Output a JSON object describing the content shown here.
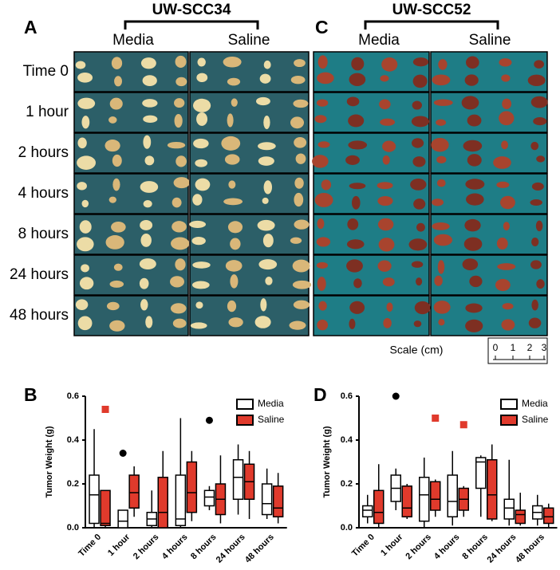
{
  "figure": {
    "panels": [
      {
        "label": "A",
        "cell_line": "UW-SCC34",
        "columns": [
          "Media",
          "Saline"
        ]
      },
      {
        "label": "C",
        "cell_line": "UW-SCC52",
        "columns": [
          "Media",
          "Saline"
        ]
      }
    ],
    "rows": [
      "Time 0",
      "1 hour",
      "2 hours",
      "4 hours",
      "8 hours",
      "24 hours",
      "48 hours"
    ],
    "scale": {
      "label": "Scale (cm)",
      "ticks": [
        0,
        1,
        2,
        3
      ]
    }
  },
  "chart_data": [
    {
      "type": "box",
      "label": "B",
      "ylabel": "Tumor Weight (g)",
      "categories": [
        "Time 0",
        "1 hour",
        "2 hours",
        "4 hours",
        "8 hours",
        "24 hours",
        "48 hours"
      ],
      "ylim": [
        0,
        0.6
      ],
      "yticks": [
        {
          "value": 0,
          "label": "0.0"
        },
        0.2,
        0.4,
        0.6
      ],
      "legend": "upper right",
      "series": [
        {
          "name": "Media",
          "color": "#ffffff",
          "outlier_color": "#000000",
          "marker": "circle",
          "min": [
            0,
            0,
            0,
            0,
            0.08,
            0.06,
            0.04
          ],
          "q1": [
            0.02,
            0,
            0.01,
            0.01,
            0.1,
            0.13,
            0.06
          ],
          "median": [
            0.15,
            0.03,
            0.04,
            0.04,
            0.14,
            0.23,
            0.11
          ],
          "q3": [
            0.24,
            0.08,
            0.07,
            0.24,
            0.17,
            0.31,
            0.2
          ],
          "max": [
            0.45,
            0.08,
            0.17,
            0.5,
            0.19,
            0.38,
            0.27
          ],
          "outliers": [
            null,
            0.34,
            null,
            null,
            0.49,
            null,
            null
          ]
        },
        {
          "name": "Saline",
          "color": "#e03a2c",
          "outlier_color": "#e03a2c",
          "marker": "square",
          "min": [
            0,
            0.05,
            0,
            0.03,
            0.02,
            0.04,
            0.02
          ],
          "q1": [
            0.01,
            0.09,
            0,
            0.07,
            0.06,
            0.13,
            0.05
          ],
          "median": [
            0.02,
            0.16,
            0.07,
            0.16,
            0.13,
            0.21,
            0.09
          ],
          "q3": [
            0.17,
            0.24,
            0.23,
            0.3,
            0.2,
            0.29,
            0.19
          ],
          "max": [
            0.17,
            0.28,
            0.35,
            0.35,
            0.33,
            0.35,
            0.25
          ],
          "outliers": [
            0.54,
            null,
            null,
            null,
            null,
            null,
            null
          ]
        }
      ]
    },
    {
      "type": "box",
      "label": "D",
      "ylabel": "Tumor Weight (g)",
      "categories": [
        "Time 0",
        "1 hour",
        "2 hours",
        "4 hours",
        "8 hours",
        "24 hours",
        "48 hours"
      ],
      "ylim": [
        0,
        0.6
      ],
      "yticks": [
        {
          "value": 0,
          "label": "0.0"
        },
        0.2,
        0.4,
        0.6
      ],
      "legend": "upper right",
      "series": [
        {
          "name": "Media",
          "color": "#ffffff",
          "outlier_color": "#000000",
          "marker": "circle",
          "min": [
            0.02,
            0.08,
            0,
            0.01,
            0.05,
            0.01,
            0.01
          ],
          "q1": [
            0.05,
            0.12,
            0.03,
            0.05,
            0.18,
            0.04,
            0.04
          ],
          "median": [
            0.08,
            0.18,
            0.15,
            0.12,
            0.3,
            0.09,
            0.07
          ],
          "q3": [
            0.1,
            0.24,
            0.23,
            0.24,
            0.32,
            0.13,
            0.1
          ],
          "max": [
            0.15,
            0.27,
            0.32,
            0.35,
            0.33,
            0.31,
            0.15
          ],
          "outliers": [
            null,
            0.6,
            null,
            null,
            null,
            null,
            null
          ]
        },
        {
          "name": "Saline",
          "color": "#e03a2c",
          "outlier_color": "#e03a2c",
          "marker": "square",
          "min": [
            0,
            0.04,
            0.05,
            0.05,
            0.03,
            0.01,
            0
          ],
          "q1": [
            0.02,
            0.05,
            0.08,
            0.08,
            0.04,
            0.02,
            0.02
          ],
          "median": [
            0.07,
            0.09,
            0.13,
            0.13,
            0.15,
            0.06,
            0.05
          ],
          "q3": [
            0.17,
            0.19,
            0.21,
            0.18,
            0.31,
            0.08,
            0.09
          ],
          "max": [
            0.29,
            0.2,
            0.22,
            0.19,
            0.38,
            0.16,
            0.11
          ],
          "outliers": [
            null,
            null,
            0.5,
            0.47,
            null,
            null,
            null
          ]
        }
      ]
    }
  ]
}
